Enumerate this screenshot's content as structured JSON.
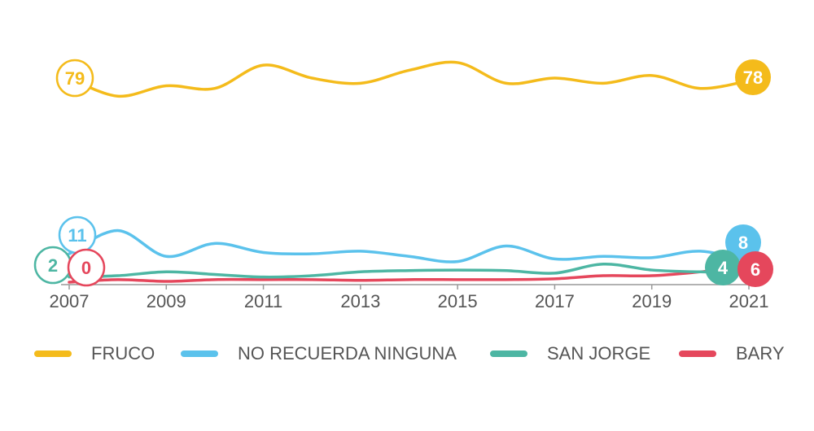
{
  "chart_data": {
    "type": "line",
    "x": [
      2007,
      2008,
      2009,
      2010,
      2011,
      2012,
      2013,
      2014,
      2015,
      2016,
      2017,
      2018,
      2019,
      2020,
      2021
    ],
    "xticks": [
      "2007",
      "2009",
      "2011",
      "2013",
      "2015",
      "2017",
      "2019",
      "2021"
    ],
    "ylim": [
      0,
      85
    ],
    "grid": false,
    "legend": "bottom",
    "series": [
      {
        "name": "FRUCO",
        "color": "#f4bb1b",
        "values": [
          79,
          72,
          76,
          75,
          84,
          79,
          77,
          82,
          85,
          77,
          79,
          77,
          80,
          75,
          78
        ],
        "start_label": "79",
        "end_label": "78"
      },
      {
        "name": "NO RECUERDA NINGUNA",
        "color": "#5bc2ec",
        "values": [
          11,
          20,
          10,
          15,
          11.5,
          11,
          12,
          10,
          8,
          14,
          9,
          10,
          9.5,
          12,
          8
        ],
        "start_label": "11",
        "end_label": "8"
      },
      {
        "name": "SAN JORGE",
        "color": "#4db6a3",
        "values": [
          2,
          2.5,
          4,
          3,
          2,
          2.5,
          4,
          4.5,
          4.7,
          4.5,
          3.5,
          7,
          4.7,
          4,
          4
        ],
        "start_label": "2",
        "end_label": "4"
      },
      {
        "name": "BARY",
        "color": "#e5475c",
        "values": [
          0,
          1,
          0.3,
          1,
          1,
          1,
          0.7,
          1,
          1,
          1,
          1.3,
          2.5,
          2.5,
          4,
          6
        ],
        "start_label": "0",
        "end_label": "6"
      }
    ]
  }
}
